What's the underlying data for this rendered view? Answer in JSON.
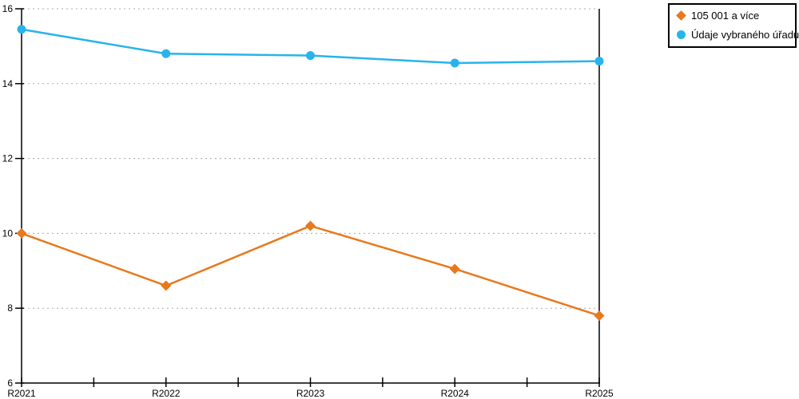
{
  "chart_data": {
    "type": "line",
    "categories": [
      "R2021",
      "R2022",
      "R2023",
      "R2024",
      "R2025"
    ],
    "series": [
      {
        "name": "105 001 a více",
        "color": "#e8791d",
        "marker": "diamond",
        "values": [
          10.0,
          8.6,
          10.2,
          9.05,
          7.8
        ]
      },
      {
        "name": "Údaje vybraného úřadu",
        "color": "#29b3ec",
        "marker": "circle",
        "values": [
          15.45,
          14.8,
          14.75,
          14.55,
          14.6
        ]
      }
    ],
    "title": "",
    "xlabel": "",
    "ylabel": "",
    "ylim": [
      6,
      16
    ],
    "yticks": [
      6,
      8,
      10,
      12,
      14,
      16
    ],
    "grid": "horizontal dashed gray lines at each y tick",
    "legend_position": "top-right, black-bordered box"
  },
  "colors": {
    "axis": "#000000",
    "gridline": "#aaaaaa",
    "background": "#ffffff",
    "series_orange": "#e8791d",
    "series_blue": "#29b3ec"
  }
}
